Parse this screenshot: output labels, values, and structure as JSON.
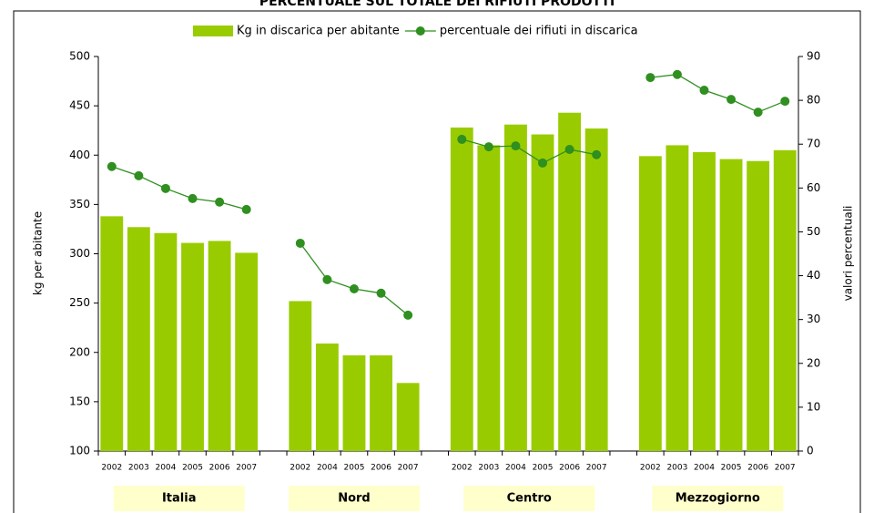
{
  "chart_data": {
    "type": "bar-line",
    "title": "PERCENTUALE SUL TOTALE DEI RIFIUTI PRODOTTI",
    "y_label": "kg per abitante",
    "y2_label": "valori percentuali",
    "categories": [
      "2002",
      "2003",
      "2004",
      "2005",
      "2006",
      "2007",
      null,
      "2002",
      "2004",
      "2005",
      "2006",
      "2007",
      null,
      "2002",
      "2003",
      "2004",
      "2005",
      "2006",
      "2007",
      null,
      "2002",
      "2003",
      "2004",
      "2005",
      "2006",
      "2007"
    ],
    "groups": [
      "Italia",
      "Nord",
      "Centro",
      "Mezzogiorno"
    ],
    "series": [
      {
        "name": "Kg in discarica per abitante",
        "type": "bar",
        "color": "#99cc00",
        "values": [
          338,
          327,
          321,
          311,
          313,
          301,
          null,
          252,
          209,
          197,
          197,
          169,
          null,
          428,
          410,
          431,
          421,
          443,
          427,
          null,
          399,
          410,
          403,
          396,
          394,
          405
        ]
      },
      {
        "name": "percentuale dei rifiuti in discarica",
        "type": "line",
        "axis": "y2",
        "color": "#2f8f1f",
        "values": [
          64.9,
          62.8,
          59.9,
          57.6,
          56.8,
          55.1,
          null,
          47.4,
          39.1,
          37.0,
          36.0,
          31.0,
          null,
          71.1,
          69.4,
          69.6,
          65.7,
          68.8,
          67.6,
          null,
          85.2,
          85.9,
          82.3,
          80.2,
          77.3,
          79.8
        ]
      }
    ],
    "ylim": [
      100,
      500
    ],
    "yticks": [
      100,
      150,
      200,
      250,
      300,
      350,
      400,
      450,
      500
    ],
    "y2lim": [
      0,
      90
    ],
    "y2ticks": [
      0,
      10,
      20,
      30,
      40,
      50,
      60,
      70,
      80,
      90
    ],
    "legend": "top",
    "grid": false
  }
}
